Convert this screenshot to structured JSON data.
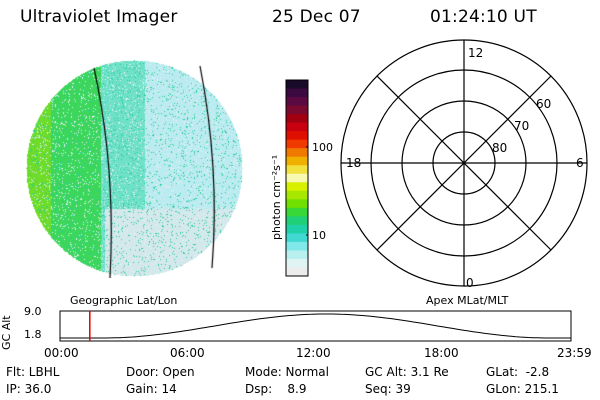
{
  "header": {
    "title": "Ultraviolet Imager",
    "date": "25 Dec 07",
    "time": "01:24:10 UT"
  },
  "colorbar": {
    "unit_label": "photon cm⁻²s⁻¹",
    "ticks": [
      "100",
      "10"
    ],
    "colors": [
      "#1a0a2a",
      "#3a0a40",
      "#5a0a40",
      "#7a0a30",
      "#a00010",
      "#c80010",
      "#e01000",
      "#f03a00",
      "#f07a00",
      "#f0b000",
      "#f0e040",
      "#f8f8b0",
      "#d8f000",
      "#a8e800",
      "#70e000",
      "#38d838",
      "#20d078",
      "#20d0a8",
      "#40d8d0",
      "#80e8e8",
      "#b8f0f0",
      "#e0f4f4",
      "#ececec"
    ]
  },
  "polar": {
    "hour_labels": {
      "top": "12",
      "left": "18",
      "right": "6",
      "bottom": "0"
    },
    "lat_labels": [
      "60",
      "70",
      "80"
    ]
  },
  "timeline": {
    "left_label": "Geographic Lat/Lon",
    "right_label": "Apex MLat/MLT",
    "axis_title": "GC Alt",
    "y_ticks": [
      "9.0",
      "1.8"
    ],
    "x_ticks": [
      "00:00",
      "06:00",
      "12:00",
      "18:00",
      "23:59"
    ],
    "marker_time_hours": 1.4
  },
  "status": {
    "flt": "Flt: LBHL",
    "door": "Door: Open",
    "mode": "Mode: Normal",
    "gc_alt": "GC Alt: 3.1 Re",
    "glat": "GLat:  -2.8",
    "ip": "IP: 36.0",
    "gain": "Gain: 14",
    "dsp": "Dsp:    8.9",
    "seq": "Seq: 39",
    "glon": "GLon: 215.1"
  }
}
